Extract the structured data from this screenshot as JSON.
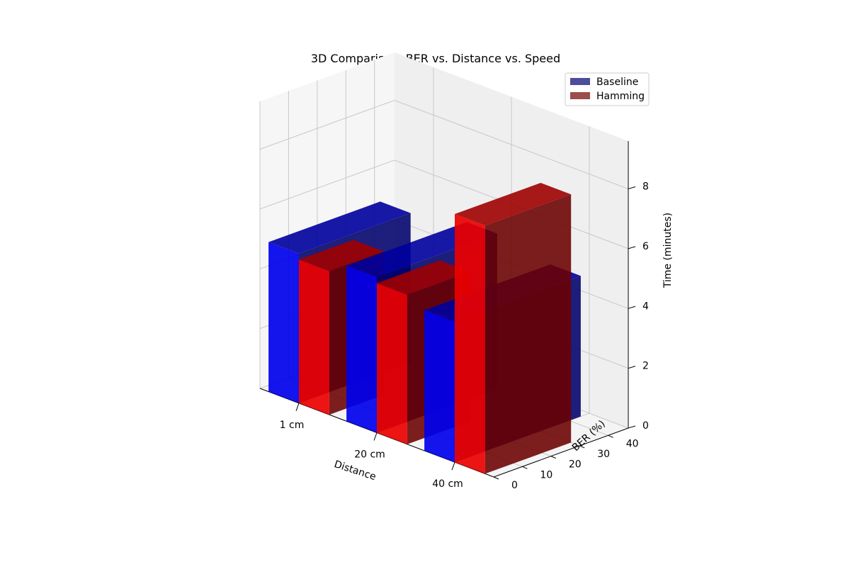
{
  "chart_data": {
    "type": "bar3d",
    "title": "3D Comparison: BER vs. Distance vs. Speed",
    "xlabel": "Distance",
    "ylabel": "BER (%)",
    "zlabel": "Time (minutes)",
    "categories": [
      "1 cm",
      "20 cm",
      "40 cm"
    ],
    "ber_ticks": [
      "0",
      "10",
      "20",
      "30",
      "40"
    ],
    "time_ticks": [
      "0",
      "2",
      "4",
      "6",
      "8"
    ],
    "ber_range": [
      0,
      47
    ],
    "time_range": [
      0,
      9.6
    ],
    "legend_position": "top-right",
    "grid": true,
    "series": [
      {
        "name": "Baseline",
        "color": "#0000ff",
        "legend_color": "#4d4d9c",
        "bars": [
          {
            "category": "1 cm",
            "ber_start": 0,
            "ber_end": 39,
            "time": 5.0
          },
          {
            "category": "20 cm",
            "ber_start": 0,
            "ber_end": 42,
            "time": 5.2
          },
          {
            "category": "40 cm",
            "ber_start": 0,
            "ber_end": 44,
            "time": 4.7
          }
        ]
      },
      {
        "name": "Hamming",
        "color": "#ff0000",
        "legend_color": "#9c4d4d",
        "bars": [
          {
            "category": "1 cm",
            "ber_start": 0,
            "ber_end": 19,
            "time": 4.8
          },
          {
            "category": "20 cm",
            "ber_start": 0,
            "ber_end": 22,
            "time": 5.0
          },
          {
            "category": "40 cm",
            "ber_start": 0,
            "ber_end": 30,
            "time": 8.3
          }
        ]
      }
    ]
  }
}
